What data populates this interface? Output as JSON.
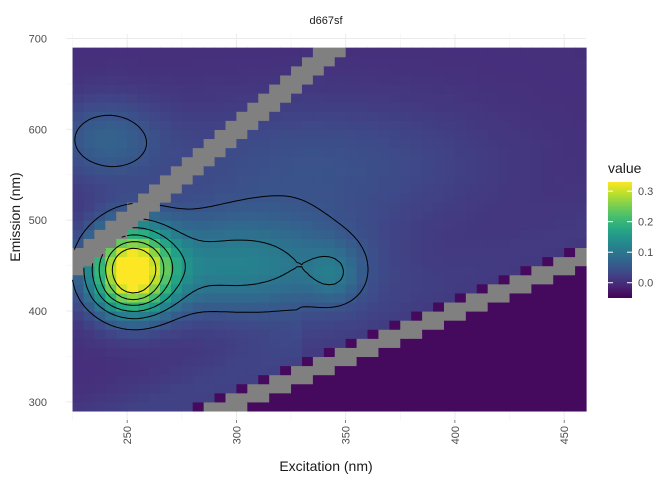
{
  "chart_data": {
    "type": "heatmap",
    "title": "d667sf",
    "xlabel": "Excitation (nm)",
    "ylabel": "Emission (nm)",
    "xlim": [
      222,
      460
    ],
    "ylim": [
      280,
      705
    ],
    "x_data_range": [
      225,
      457
    ],
    "y_data_range": [
      290,
      685
    ],
    "x_ticks": [
      250,
      300,
      350,
      400,
      450
    ],
    "x_tick_labels": [
      "250",
      "300",
      "350",
      "400",
      "450"
    ],
    "y_ticks": [
      300,
      400,
      500,
      600,
      700
    ],
    "y_tick_labels": [
      "300",
      "400",
      "500",
      "600",
      "700"
    ],
    "grid": true,
    "scatter_bands": [
      {
        "order": 1,
        "description": "first-order Rayleigh scatter",
        "em_min_offset": -10,
        "em_max_offset": 10
      },
      {
        "order": 2,
        "description": "second-order Rayleigh scatter",
        "em_min_offset": -12,
        "em_max_offset": 12
      }
    ],
    "peaks": [
      {
        "ex": 252,
        "em": 445,
        "value": 0.33
      },
      {
        "ex": 345,
        "em": 440,
        "value": 0.13
      }
    ],
    "contour_levels": [
      0.05,
      0.1,
      0.15,
      0.2,
      0.25,
      0.3
    ],
    "legend": {
      "title": "value",
      "min": -0.05,
      "max": 0.33,
      "ticks": [
        0.0,
        0.1,
        0.2,
        0.3
      ],
      "tick_labels": [
        "0.0",
        "0.1",
        "0.2",
        "0.3"
      ],
      "placement": "right"
    },
    "colors": {
      "colormap": "viridis",
      "scatter_mask": "#808080",
      "contour": "#000000"
    }
  }
}
